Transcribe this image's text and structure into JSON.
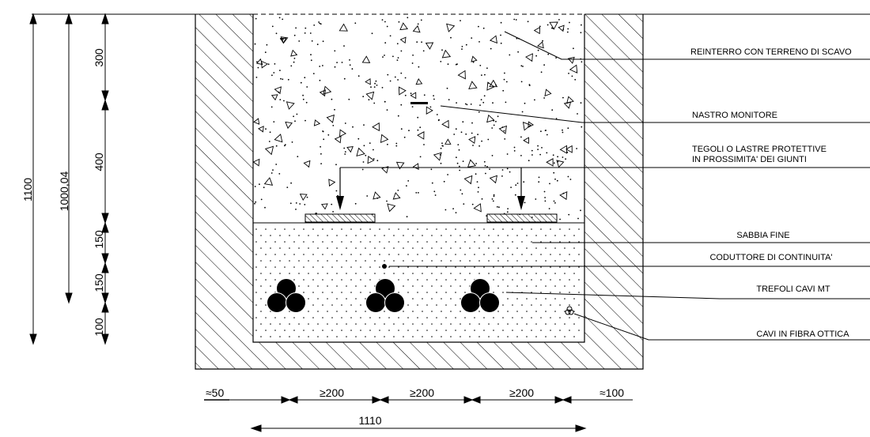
{
  "vertical_dimensions": {
    "total": "1100",
    "partial": "1000,04",
    "segments": [
      "300",
      "400",
      "150",
      "150",
      "100"
    ]
  },
  "horizontal_dimensions": {
    "left_margin": "≈50",
    "spacing_1": "≥200",
    "spacing_2": "≥200",
    "spacing_3": "≥200",
    "right_margin": "≈100",
    "total_width": "1110"
  },
  "labels": {
    "backfill": "REINTERRO CON TERRENO DI SCAVO",
    "warning_tape": "NASTRO MONITORE",
    "protective_tiles_line1": "TEGOLI O LASTRE PROTETTIVE",
    "protective_tiles_line2": "IN PROSSIMITA' DEI GIUNTI",
    "fine_sand": "SABBIA FINE",
    "continuity_conductor": "CODUTTORE DI CONTINUITA'",
    "mv_cable_trefoils": "TREFOLI CAVI MT",
    "fiber_optic_cables": "CAVI IN FIBRA OTTICA"
  }
}
